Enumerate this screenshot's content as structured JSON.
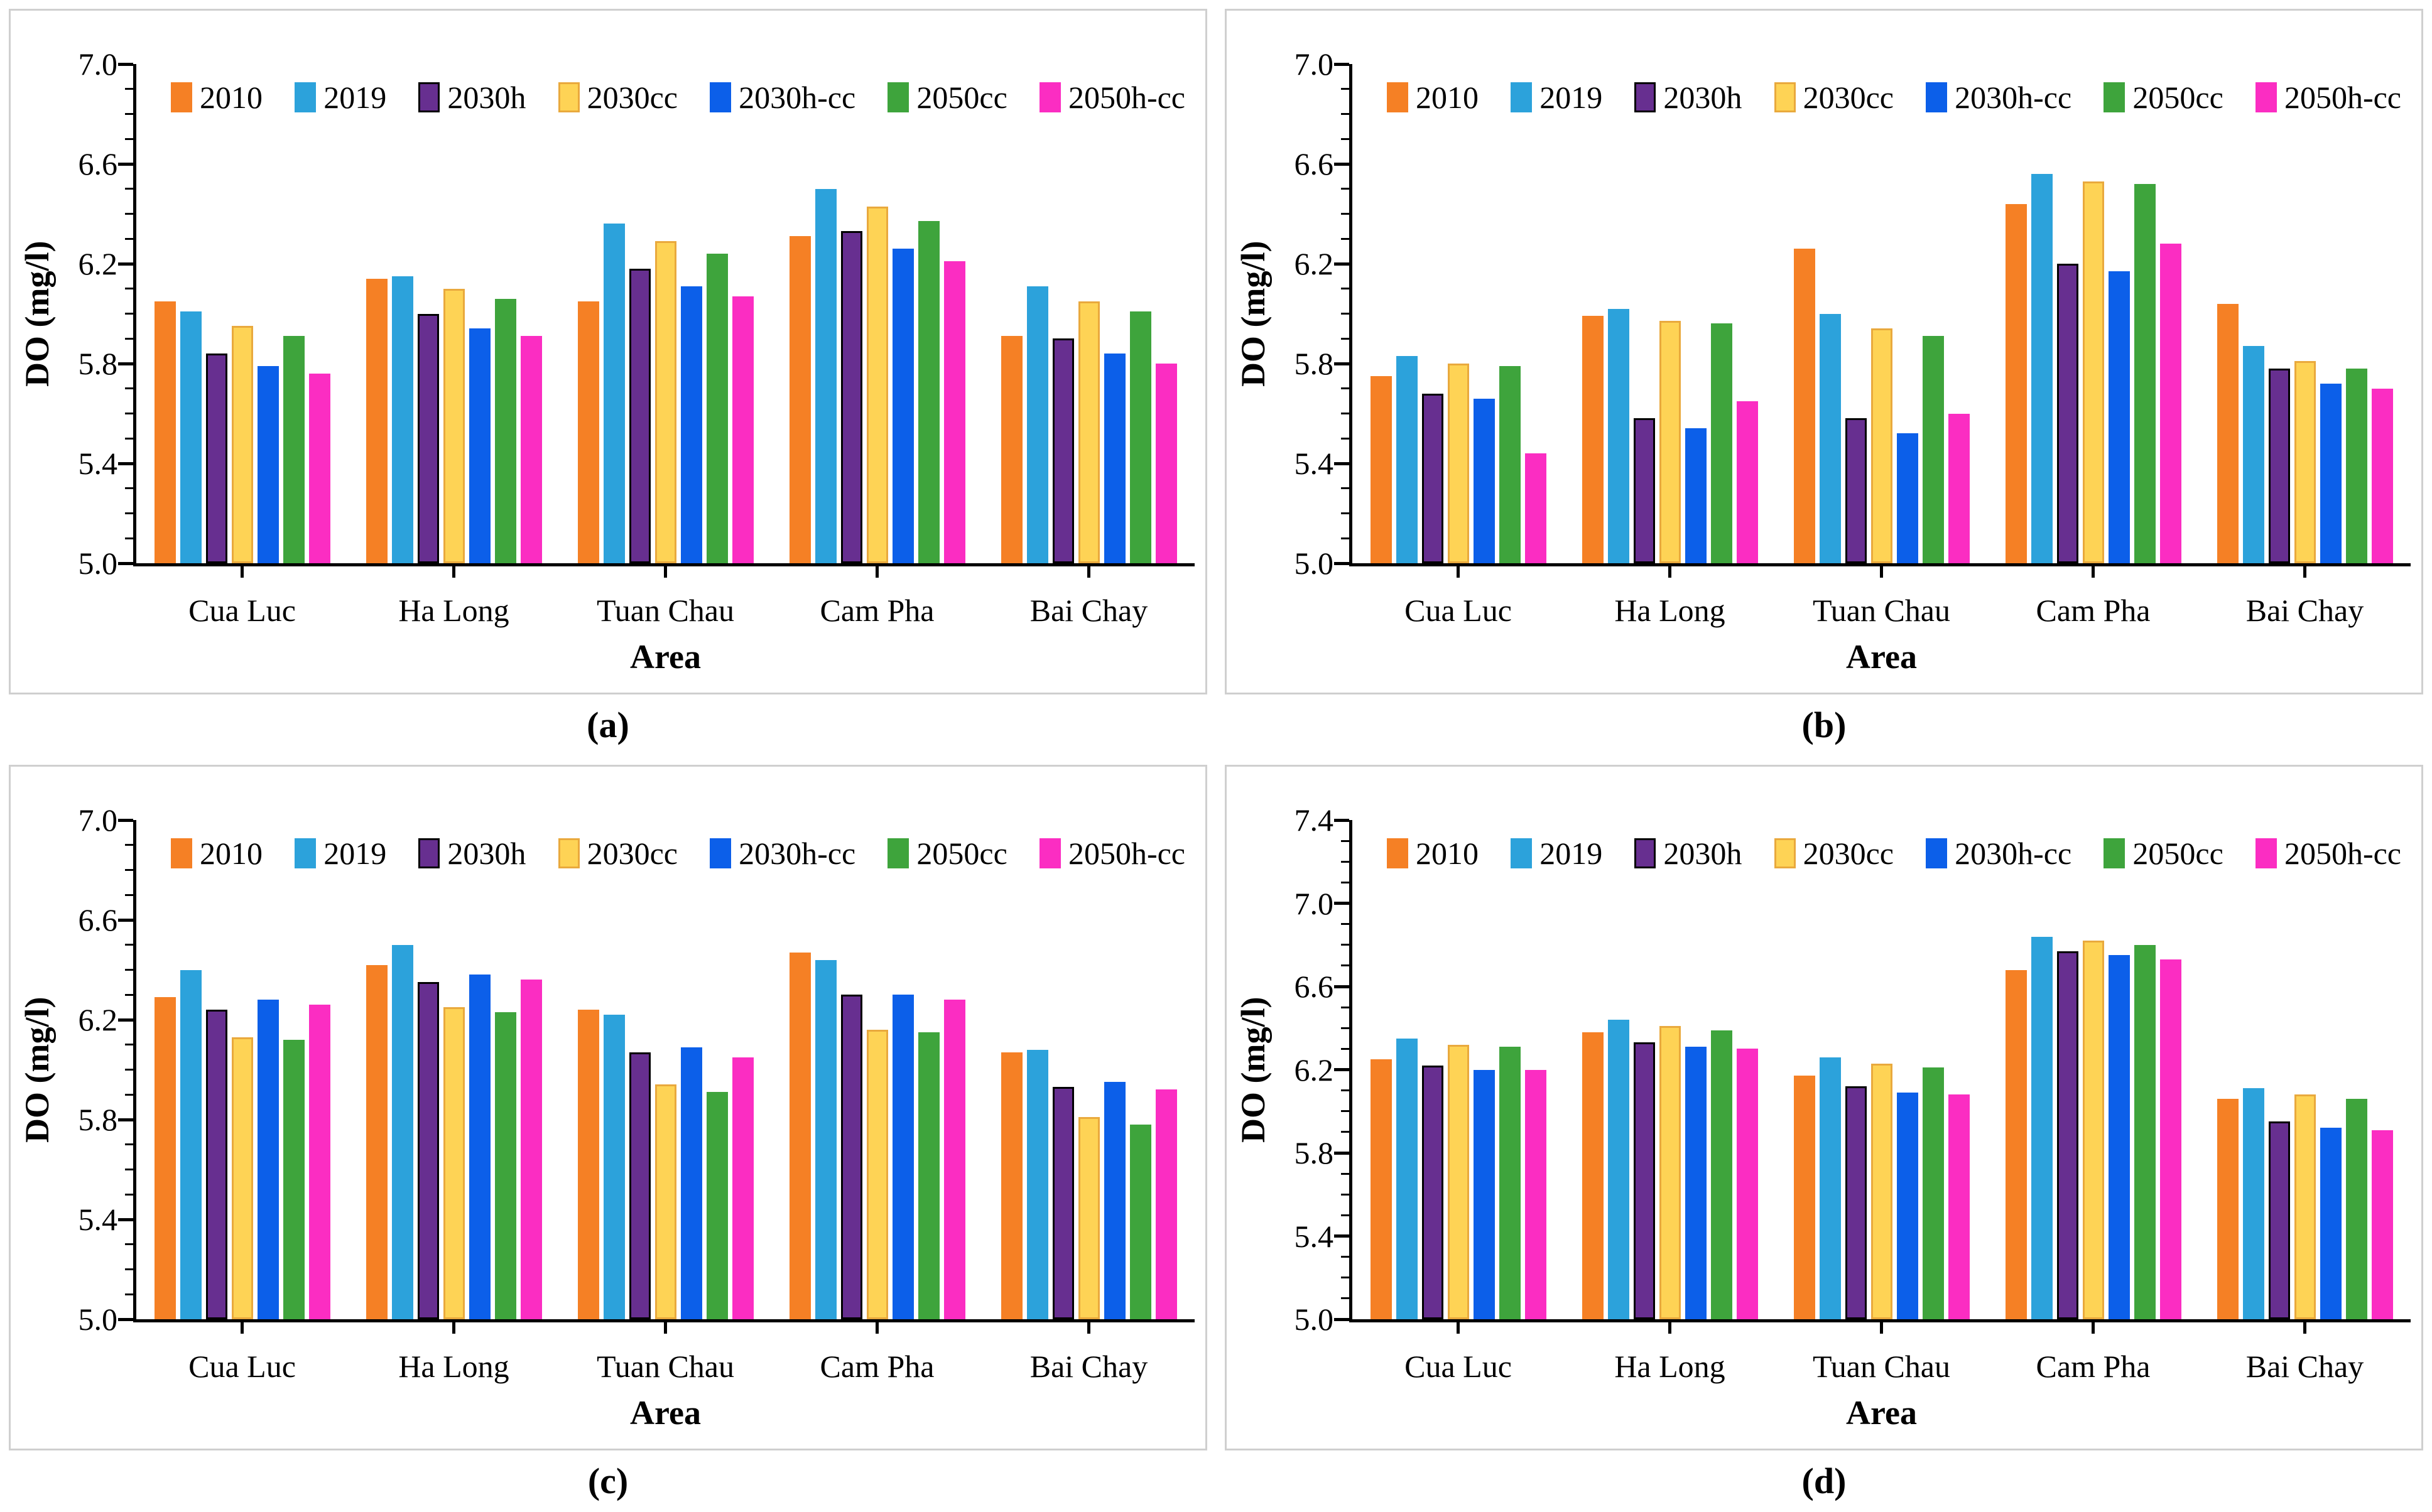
{
  "figure": {
    "xlabel": "Area",
    "ylabel": "DO (mg/l)",
    "categories": [
      "Cua Luc",
      "Ha Long",
      "Tuan Chau",
      "Cam Pha",
      "Bai Chay"
    ],
    "legend_labels": [
      "2010",
      "2019",
      "2030h",
      "2030cc",
      "2030h-cc",
      "2050cc",
      "2050h-cc"
    ],
    "panel_letters": [
      "(a)",
      "(b)",
      "(c)",
      "(d)"
    ]
  },
  "series_styles": {
    "2010": {
      "color": "#F58025"
    },
    "2019": {
      "color": "#2CA2DB"
    },
    "2030h": {
      "color": "#672F90",
      "border": "#000000"
    },
    "2030cc": {
      "color": "#FED355",
      "border": "#E9A93D"
    },
    "2030h-cc": {
      "color": "#0C5FE9"
    },
    "2050cc": {
      "color": "#3EA43C"
    },
    "2050h-cc": {
      "color": "#FB2DC2"
    }
  },
  "chart_data": [
    {
      "type": "bar",
      "panel_label": "(a)",
      "xlabel": "Area",
      "ylabel": "DO (mg/l)",
      "ylim": [
        5.0,
        7.0
      ],
      "yticks": [
        5.0,
        5.4,
        5.8,
        6.2,
        6.6,
        7.0
      ],
      "minor_tick_step": 0.1,
      "legend_position": "top",
      "grid": false,
      "categories": [
        "Cua Luc",
        "Ha Long",
        "Tuan Chau",
        "Cam Pha",
        "Bai Chay"
      ],
      "series": [
        {
          "name": "2010",
          "values": [
            6.05,
            6.14,
            6.05,
            6.31,
            5.91
          ]
        },
        {
          "name": "2019",
          "values": [
            6.01,
            6.15,
            6.36,
            6.5,
            6.11
          ]
        },
        {
          "name": "2030h",
          "values": [
            5.84,
            6.0,
            6.18,
            6.33,
            5.9
          ]
        },
        {
          "name": "2030cc",
          "values": [
            5.95,
            6.1,
            6.29,
            6.43,
            6.05
          ]
        },
        {
          "name": "2030h-cc",
          "values": [
            5.79,
            5.94,
            6.11,
            6.26,
            5.84
          ]
        },
        {
          "name": "2050cc",
          "values": [
            5.91,
            6.06,
            6.24,
            6.37,
            6.01
          ]
        },
        {
          "name": "2050h-cc",
          "values": [
            5.76,
            5.91,
            6.07,
            6.21,
            5.8
          ]
        }
      ]
    },
    {
      "type": "bar",
      "panel_label": "(b)",
      "xlabel": "Area",
      "ylabel": "DO (mg/l)",
      "ylim": [
        5.0,
        7.0
      ],
      "yticks": [
        5.0,
        5.4,
        5.8,
        6.2,
        6.6,
        7.0
      ],
      "minor_tick_step": 0.1,
      "legend_position": "top",
      "grid": false,
      "categories": [
        "Cua Luc",
        "Ha Long",
        "Tuan Chau",
        "Cam Pha",
        "Bai Chay"
      ],
      "series": [
        {
          "name": "2010",
          "values": [
            5.75,
            5.99,
            6.26,
            6.44,
            6.04
          ]
        },
        {
          "name": "2019",
          "values": [
            5.83,
            6.02,
            6.0,
            6.56,
            5.87
          ]
        },
        {
          "name": "2030h",
          "values": [
            5.68,
            5.58,
            5.58,
            6.2,
            5.78
          ]
        },
        {
          "name": "2030cc",
          "values": [
            5.8,
            5.97,
            5.94,
            6.53,
            5.81
          ]
        },
        {
          "name": "2030h-cc",
          "values": [
            5.66,
            5.54,
            5.52,
            6.17,
            5.72
          ]
        },
        {
          "name": "2050cc",
          "values": [
            5.79,
            5.96,
            5.91,
            6.52,
            5.78
          ]
        },
        {
          "name": "2050h-cc",
          "values": [
            5.44,
            5.65,
            5.6,
            6.28,
            5.7
          ]
        }
      ]
    },
    {
      "type": "bar",
      "panel_label": "(c)",
      "xlabel": "Area",
      "ylabel": "DO (mg/l)",
      "ylim": [
        5.0,
        7.0
      ],
      "yticks": [
        5.0,
        5.4,
        5.8,
        6.2,
        6.6,
        7.0
      ],
      "minor_tick_step": 0.1,
      "legend_position": "top",
      "grid": false,
      "categories": [
        "Cua Luc",
        "Ha Long",
        "Tuan Chau",
        "Cam Pha",
        "Bai Chay"
      ],
      "series": [
        {
          "name": "2010",
          "values": [
            6.29,
            6.42,
            6.24,
            6.47,
            6.07
          ]
        },
        {
          "name": "2019",
          "values": [
            6.4,
            6.5,
            6.22,
            6.44,
            6.08
          ]
        },
        {
          "name": "2030h",
          "values": [
            6.24,
            6.35,
            6.07,
            6.3,
            5.93
          ]
        },
        {
          "name": "2030cc",
          "values": [
            6.13,
            6.25,
            5.94,
            6.16,
            5.81
          ]
        },
        {
          "name": "2030h-cc",
          "values": [
            6.28,
            6.38,
            6.09,
            6.3,
            5.95
          ]
        },
        {
          "name": "2050cc",
          "values": [
            6.12,
            6.23,
            5.91,
            6.15,
            5.78
          ]
        },
        {
          "name": "2050h-cc",
          "values": [
            6.26,
            6.36,
            6.05,
            6.28,
            5.92
          ]
        }
      ]
    },
    {
      "type": "bar",
      "panel_label": "(d)",
      "xlabel": "Area",
      "ylabel": "DO (mg/l)",
      "ylim": [
        5.0,
        7.4
      ],
      "yticks": [
        5.0,
        5.4,
        5.8,
        6.2,
        6.6,
        7.0,
        7.4
      ],
      "minor_tick_step": 0.1,
      "legend_position": "top",
      "grid": false,
      "categories": [
        "Cua Luc",
        "Ha Long",
        "Tuan Chau",
        "Cam Pha",
        "Bai Chay"
      ],
      "series": [
        {
          "name": "2010",
          "values": [
            6.25,
            6.38,
            6.17,
            6.68,
            6.06
          ]
        },
        {
          "name": "2019",
          "values": [
            6.35,
            6.44,
            6.26,
            6.84,
            6.11
          ]
        },
        {
          "name": "2030h",
          "values": [
            6.22,
            6.33,
            6.12,
            6.77,
            5.95
          ]
        },
        {
          "name": "2030cc",
          "values": [
            6.32,
            6.41,
            6.23,
            6.82,
            6.08
          ]
        },
        {
          "name": "2030h-cc",
          "values": [
            6.2,
            6.31,
            6.09,
            6.75,
            5.92
          ]
        },
        {
          "name": "2050cc",
          "values": [
            6.31,
            6.39,
            6.21,
            6.8,
            6.06
          ]
        },
        {
          "name": "2050h-cc",
          "values": [
            6.2,
            6.3,
            6.08,
            6.73,
            5.91
          ]
        }
      ]
    }
  ]
}
